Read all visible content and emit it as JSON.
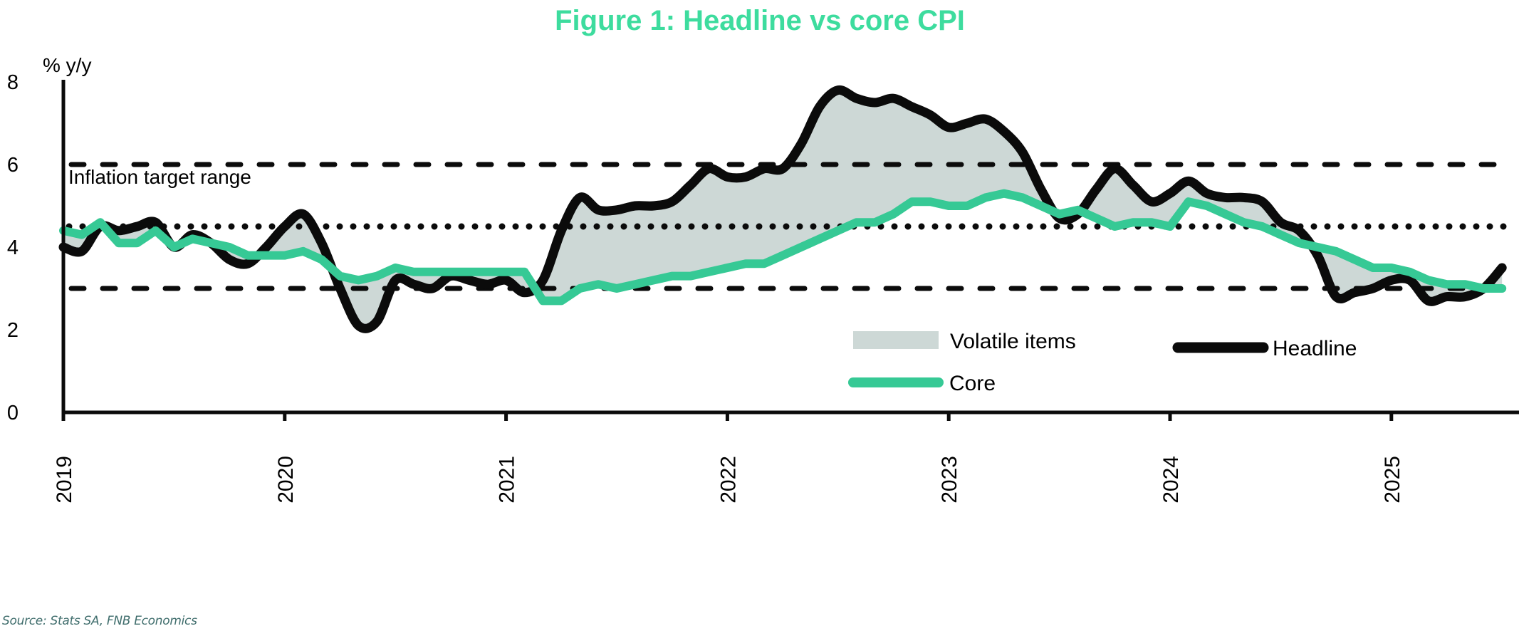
{
  "chart_data": {
    "type": "line",
    "title": "Figure 1: Headline vs core CPI",
    "ylabel": "% y/y",
    "xlabel": "",
    "ylim": [
      0,
      8
    ],
    "yticks": [
      0,
      2,
      4,
      6,
      8
    ],
    "x_start": "2019-01",
    "x_end": "2025-08",
    "frequency": "monthly",
    "x_tick_labels": [
      "2019",
      "2020",
      "2021",
      "2022",
      "2023",
      "2024",
      "2025"
    ],
    "grid": false,
    "reference_lines": [
      {
        "name": "target-upper",
        "value": 6,
        "style": "dashed"
      },
      {
        "name": "target-midpoint",
        "value": 4.5,
        "style": "dotted"
      },
      {
        "name": "target-lower",
        "value": 3,
        "style": "dashed"
      }
    ],
    "annotation": "Inflation target range",
    "series": [
      {
        "name": "Headline",
        "color": "#0b0b0b",
        "values": [
          4.0,
          3.9,
          4.5,
          4.4,
          4.5,
          4.6,
          4.0,
          4.3,
          4.1,
          3.7,
          3.6,
          4.0,
          4.5,
          4.8,
          4.1,
          3.0,
          2.1,
          2.2,
          3.2,
          3.1,
          3.0,
          3.3,
          3.2,
          3.1,
          3.2,
          2.9,
          3.2,
          4.4,
          5.2,
          4.9,
          4.9,
          5.0,
          5.0,
          5.1,
          5.5,
          5.9,
          5.7,
          5.7,
          5.9,
          5.9,
          6.5,
          7.4,
          7.8,
          7.6,
          7.5,
          7.6,
          7.4,
          7.2,
          6.9,
          7.0,
          7.1,
          6.8,
          6.3,
          5.4,
          4.7,
          4.8,
          5.4,
          5.9,
          5.5,
          5.1,
          5.3,
          5.6,
          5.3,
          5.2,
          5.2,
          5.1,
          4.6,
          4.4,
          3.8,
          2.8,
          2.9,
          3.0,
          3.2,
          3.2,
          2.7,
          2.8,
          2.8,
          3.0,
          3.5
        ]
      },
      {
        "name": "Core",
        "color": "#36c995",
        "values": [
          4.4,
          4.3,
          4.6,
          4.1,
          4.1,
          4.4,
          4.0,
          4.2,
          4.1,
          4.0,
          3.8,
          3.8,
          3.8,
          3.9,
          3.7,
          3.3,
          3.2,
          3.3,
          3.5,
          3.4,
          3.4,
          3.4,
          3.4,
          3.4,
          3.4,
          3.4,
          2.7,
          2.7,
          3.0,
          3.1,
          3.0,
          3.1,
          3.2,
          3.3,
          3.3,
          3.4,
          3.5,
          3.6,
          3.6,
          3.8,
          4.0,
          4.2,
          4.4,
          4.6,
          4.6,
          4.8,
          5.1,
          5.1,
          5.0,
          5.0,
          5.2,
          5.3,
          5.2,
          5.0,
          4.8,
          4.9,
          4.7,
          4.5,
          4.6,
          4.6,
          4.5,
          5.1,
          5.0,
          4.8,
          4.6,
          4.5,
          4.3,
          4.1,
          4.0,
          3.9,
          3.7,
          3.5,
          3.5,
          3.4,
          3.2,
          3.1,
          3.1,
          3.0,
          3.0
        ]
      }
    ],
    "area": {
      "name": "Volatile items",
      "between": [
        "Headline",
        "Core"
      ],
      "color": "#cdd8d6"
    },
    "legend": {
      "placement": "bottom-center-inside",
      "entries": [
        {
          "label": "Volatile items",
          "kind": "area",
          "color": "#cdd8d6"
        },
        {
          "label": "Headline",
          "kind": "line",
          "color": "#0b0b0b"
        },
        {
          "label": "Core",
          "kind": "line",
          "color": "#36c995"
        }
      ]
    }
  },
  "colors": {
    "title": "#3ddc9e",
    "source": "#3f6d6c",
    "axis": "#0b0b0b"
  },
  "source_note": "Source: Stats SA, FNB Economics"
}
